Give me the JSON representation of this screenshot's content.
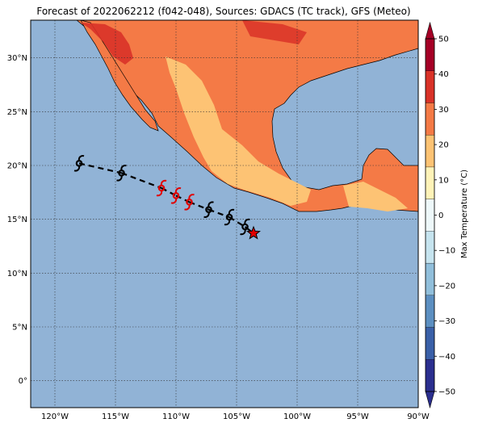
{
  "title": "Forecast of 2022062212 (f042-048), Sources: GDACS (TC track), GFS (Meteo)",
  "map": {
    "lon_range": [
      -122,
      -90
    ],
    "lat_range": [
      -2.5,
      33.5
    ],
    "lon_ticks": [
      {
        "value": -120,
        "label": "120°W"
      },
      {
        "value": -115,
        "label": "115°W"
      },
      {
        "value": -110,
        "label": "110°W"
      },
      {
        "value": -105,
        "label": "105°W"
      },
      {
        "value": -100,
        "label": "100°W"
      },
      {
        "value": -95,
        "label": "95°W"
      },
      {
        "value": -90,
        "label": "90°W"
      }
    ],
    "lat_ticks": [
      {
        "value": 0,
        "label": "0°"
      },
      {
        "value": 5,
        "label": "5°N"
      },
      {
        "value": 10,
        "label": "10°N"
      },
      {
        "value": 15,
        "label": "15°N"
      },
      {
        "value": 20,
        "label": "20°N"
      },
      {
        "value": 25,
        "label": "25°N"
      },
      {
        "value": 30,
        "label": "30°N"
      }
    ],
    "grid": true,
    "ocean_color": "#91b3d6"
  },
  "colorbar": {
    "label": "Max Temperature (°C)",
    "ticks": [
      "−50",
      "−40",
      "−30",
      "−20",
      "−10",
      "0",
      "10",
      "20",
      "30",
      "40",
      "50"
    ],
    "colors": [
      "#2b2f8f",
      "#3a60a8",
      "#5c8fc1",
      "#91bfdb",
      "#c6e4ef",
      "#eef8fa",
      "#fff3b8",
      "#fdc374",
      "#f47a46",
      "#d93228",
      "#a50026"
    ]
  },
  "track": {
    "points": [
      {
        "lon": -118.0,
        "lat": 20.2,
        "type": "past"
      },
      {
        "lon": -114.5,
        "lat": 19.3,
        "type": "past"
      },
      {
        "lon": -111.2,
        "lat": 17.9,
        "type": "current"
      },
      {
        "lon": -110.0,
        "lat": 17.2,
        "type": "current"
      },
      {
        "lon": -108.9,
        "lat": 16.6,
        "type": "current"
      },
      {
        "lon": -107.3,
        "lat": 15.9,
        "type": "forecast"
      },
      {
        "lon": -105.6,
        "lat": 15.2,
        "type": "forecast"
      },
      {
        "lon": -104.3,
        "lat": 14.3,
        "type": "forecast"
      }
    ],
    "star": {
      "lon": -103.6,
      "lat": 13.7
    },
    "line_color": "#000000",
    "marker_colors": {
      "past": "#000000",
      "current": "#e00000",
      "forecast": "#000000"
    },
    "star_color": "#e00000"
  }
}
